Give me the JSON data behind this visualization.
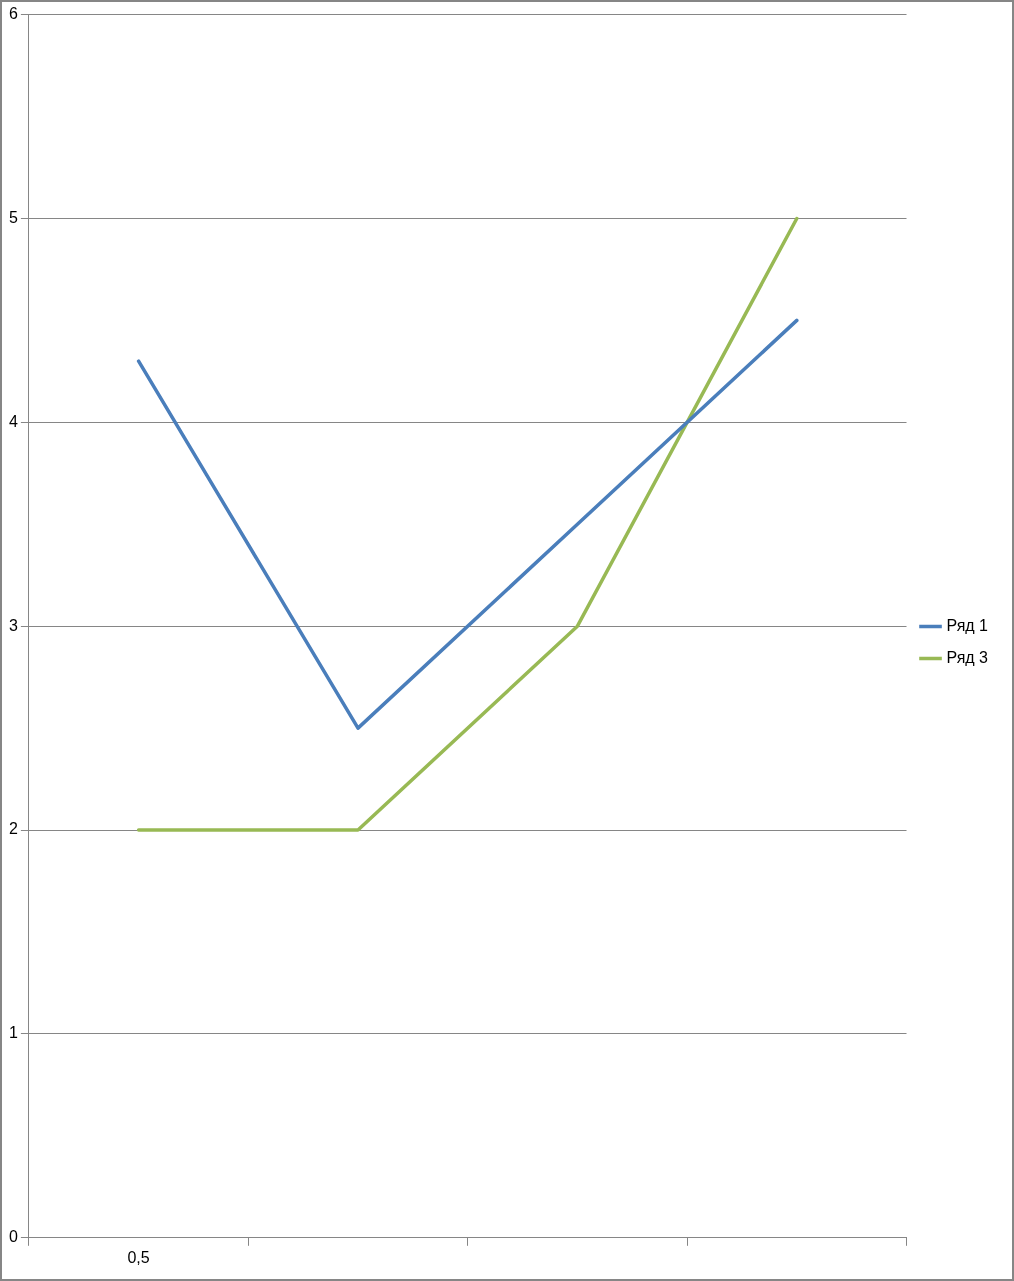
{
  "chart_data": {
    "type": "line",
    "categories": [
      "0,5",
      null,
      null,
      null
    ],
    "series": [
      {
        "name": "Ряд 1",
        "color": "#4a7ebb",
        "values": [
          4.3,
          2.5,
          3.5,
          4.5
        ]
      },
      {
        "name": "Ряд 3",
        "color": "#98b954",
        "values": [
          2,
          2,
          3,
          5
        ]
      }
    ],
    "ylim": [
      0,
      6
    ],
    "yticks": [
      0,
      1,
      2,
      3,
      4,
      5,
      6
    ],
    "grid": "y",
    "legend": "right",
    "marker": "none",
    "line_style": "solid"
  }
}
